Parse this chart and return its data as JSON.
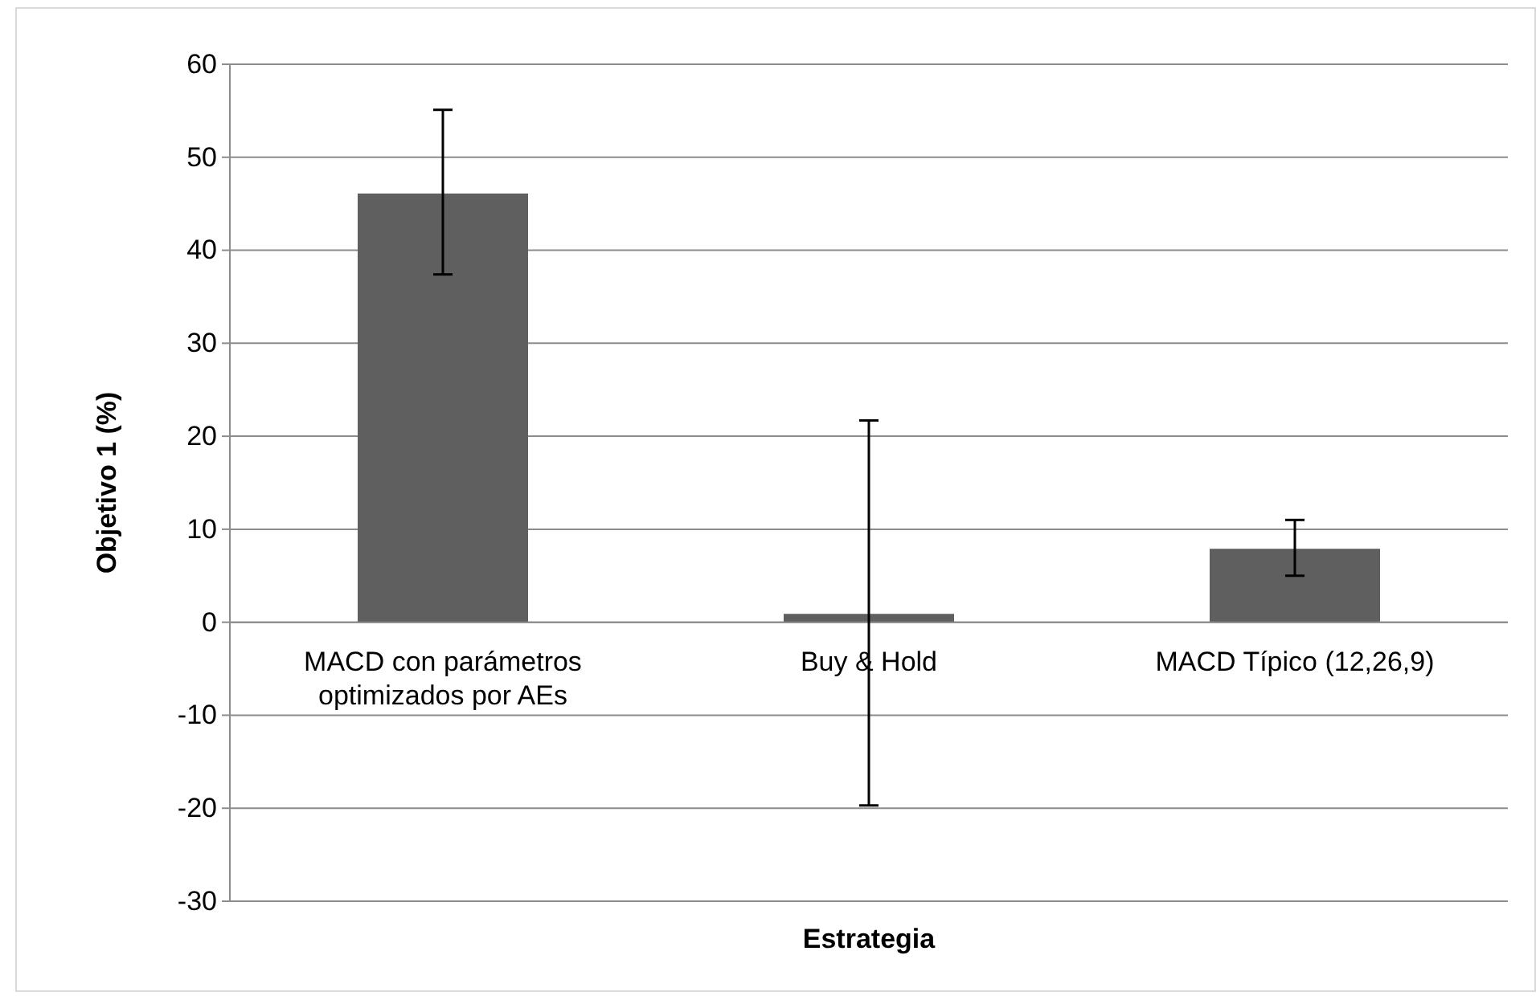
{
  "chart_data": {
    "type": "bar",
    "xlabel": "Estrategia",
    "ylabel": "Objetivo 1 (%)",
    "categories": [
      "MACD con parámetros optimizados por AEs",
      "Buy & Hold",
      "MACD Típico (12,26,9)"
    ],
    "values": [
      46.1,
      0.9,
      7.9
    ],
    "errors": [
      [
        37.4,
        55.1
      ],
      [
        -19.7,
        21.7
      ],
      [
        5.0,
        11.0
      ]
    ],
    "color": "#5f5f5f",
    "ylim": [
      -30,
      60
    ],
    "yticks": [
      -30,
      -20,
      -10,
      0,
      10,
      20,
      30,
      40,
      50,
      60
    ],
    "grid": "y"
  }
}
